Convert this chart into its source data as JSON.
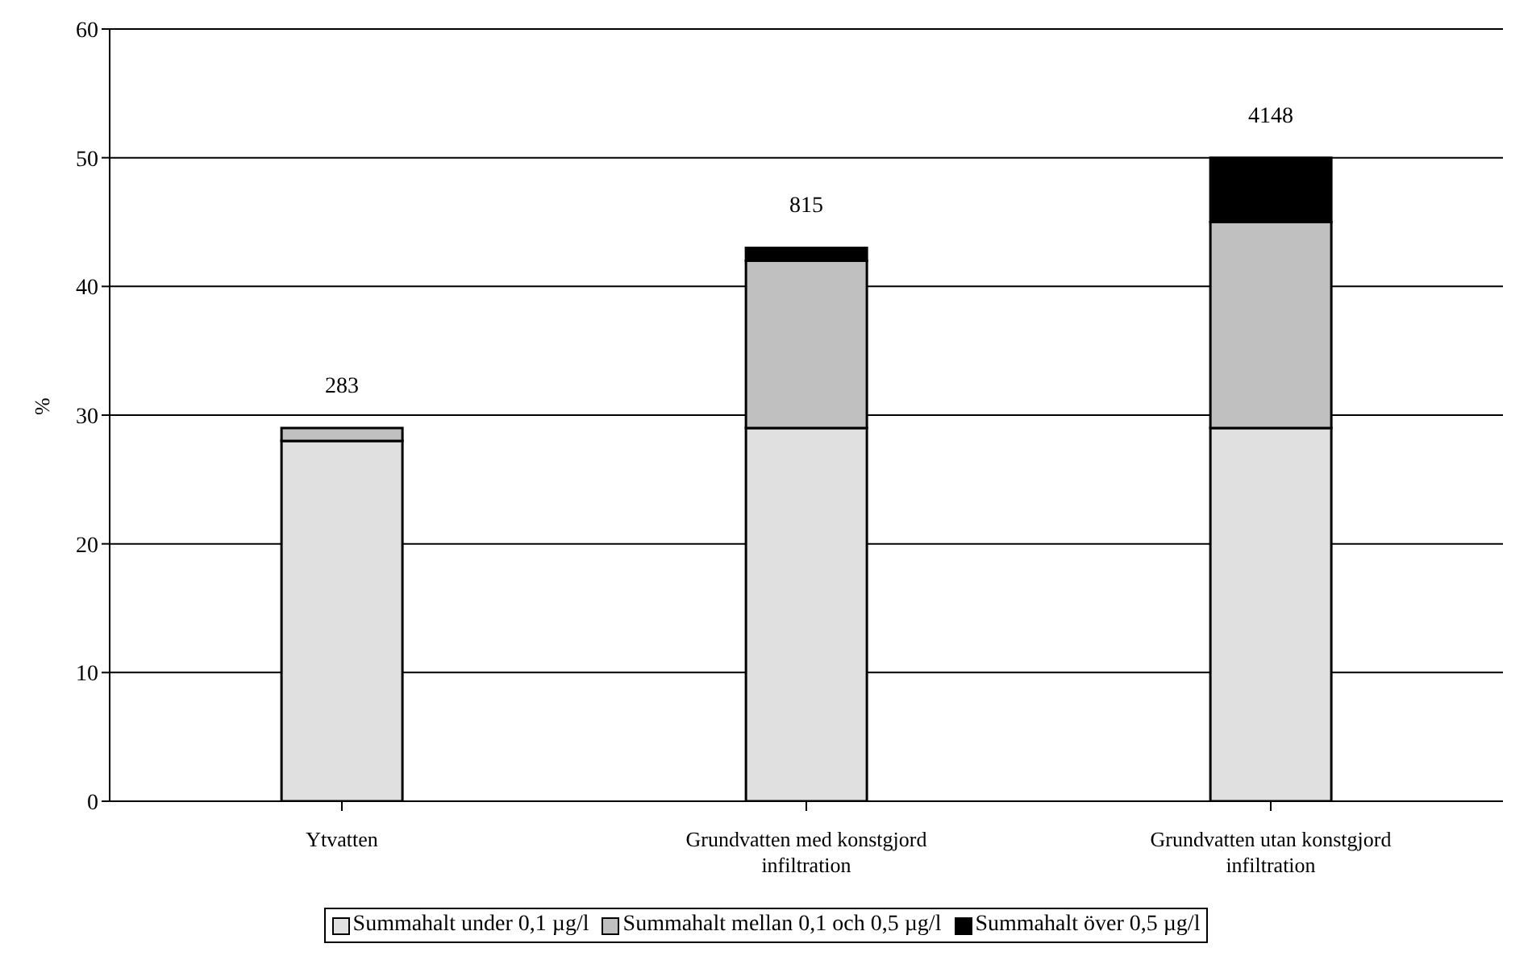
{
  "chart_data": {
    "type": "bar",
    "stacked": true,
    "ylabel": "%",
    "categories": [
      "Ytvatten",
      "Grundvatten med konstgjord infiltration",
      "Grundvatten utan konstgjord infiltration"
    ],
    "series": [
      {
        "name": "Summahalt under 0,1 µg/l",
        "color": "#e0e0e0",
        "values": [
          28,
          29,
          29
        ]
      },
      {
        "name": "Summahalt mellan 0,1 och 0,5 µg/l",
        "color": "#c0c0c0",
        "values": [
          1,
          13,
          16
        ]
      },
      {
        "name": "Summahalt över 0,5 µg/l",
        "color": "#000000",
        "values": [
          0,
          1,
          5
        ]
      }
    ],
    "annotations": [
      {
        "text": "283",
        "x": "Ytvatten",
        "y": 29
      },
      {
        "text": "815",
        "x": "Grundvatten med konstgjord infiltration",
        "y": 43
      },
      {
        "text": "4148",
        "x": "Grundvatten utan konstgjord infiltration",
        "y": 50
      }
    ],
    "ylim": [
      0,
      60
    ],
    "yticks": [
      0,
      10,
      20,
      30,
      40,
      50,
      60
    ],
    "grid": "y",
    "legend": "bottom"
  }
}
